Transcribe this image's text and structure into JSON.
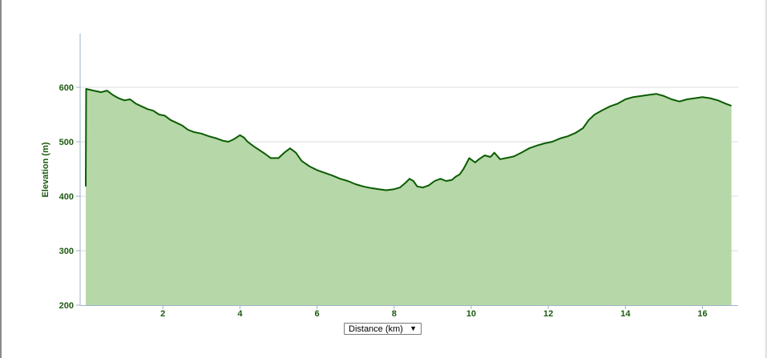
{
  "axis_selector": {
    "selected": "Distance (km)",
    "arrow": "▼",
    "icon": "chevron-down-icon"
  },
  "colors": {
    "line": "#0a5c00",
    "fill": "#b6d7a8",
    "tick_text": "#1c5a0f",
    "grid": "#dddddd",
    "axis": "#9db3c8"
  },
  "chart_data": {
    "type": "area",
    "title": "",
    "xlabel": "Distance (km)",
    "ylabel": "Elevation (m)",
    "xlim": [
      0,
      16.8
    ],
    "ylim": [
      200,
      700
    ],
    "x_ticks": [
      2,
      4,
      6,
      8,
      10,
      12,
      14,
      16
    ],
    "y_ticks": [
      200,
      300,
      400,
      500,
      600
    ],
    "grid": true,
    "legend": "none",
    "series": [
      {
        "x": [
          0.0,
          0.01,
          0.2,
          0.4,
          0.55,
          0.7,
          0.85,
          1.0,
          1.15,
          1.3,
          1.45,
          1.6,
          1.75,
          1.9,
          2.05,
          2.2,
          2.35,
          2.5,
          2.65,
          2.8,
          3.0,
          3.2,
          3.4,
          3.55,
          3.7,
          3.85,
          4.0,
          4.1,
          4.2,
          4.35,
          4.5,
          4.65,
          4.8,
          5.0,
          5.15,
          5.3,
          5.45,
          5.6,
          5.8,
          6.0,
          6.2,
          6.4,
          6.6,
          6.8,
          7.0,
          7.2,
          7.4,
          7.6,
          7.8,
          8.0,
          8.15,
          8.3,
          8.4,
          8.5,
          8.6,
          8.75,
          8.9,
          9.05,
          9.2,
          9.35,
          9.5,
          9.6,
          9.7,
          9.8,
          9.95,
          10.1,
          10.2,
          10.35,
          10.5,
          10.6,
          10.75,
          10.9,
          11.1,
          11.3,
          11.5,
          11.7,
          11.9,
          12.1,
          12.3,
          12.5,
          12.7,
          12.9,
          13.05,
          13.2,
          13.4,
          13.6,
          13.8,
          14.0,
          14.2,
          14.4,
          14.6,
          14.8,
          15.0,
          15.2,
          15.4,
          15.6,
          15.8,
          16.0,
          16.2,
          16.4,
          16.6,
          16.75
        ],
        "y": [
          418,
          597,
          594,
          591,
          594,
          586,
          580,
          576,
          578,
          570,
          565,
          560,
          557,
          550,
          548,
          540,
          535,
          530,
          522,
          518,
          515,
          510,
          506,
          502,
          500,
          505,
          512,
          508,
          500,
          492,
          485,
          478,
          470,
          470,
          480,
          488,
          480,
          465,
          455,
          448,
          443,
          438,
          432,
          428,
          422,
          418,
          415,
          413,
          411,
          413,
          416,
          425,
          432,
          428,
          418,
          416,
          420,
          428,
          432,
          428,
          430,
          436,
          440,
          450,
          470,
          462,
          468,
          475,
          472,
          480,
          468,
          470,
          473,
          480,
          488,
          493,
          497,
          500,
          506,
          510,
          516,
          525,
          540,
          550,
          558,
          565,
          570,
          578,
          582,
          584,
          586,
          588,
          584,
          578,
          574,
          578,
          580,
          582,
          580,
          576,
          570,
          566
        ]
      }
    ]
  }
}
